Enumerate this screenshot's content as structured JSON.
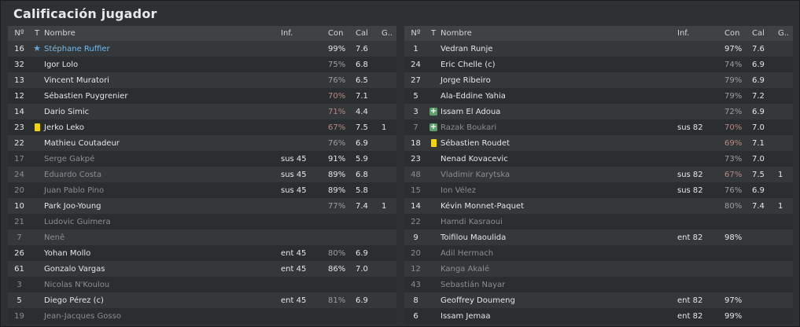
{
  "title": "Calificación jugador",
  "headers": {
    "num": "Nº",
    "t": "T",
    "name": "Nombre",
    "inf": "Inf.",
    "con": "Con",
    "cal": "Cal",
    "g": "G.."
  },
  "icons": {
    "star": "star-icon",
    "yellow_card": "yellow-card-icon",
    "injury_plus": "injury-icon"
  },
  "colors": {
    "yellow_card": "#f1d21a",
    "star": "#6aa6d8",
    "injury": "#5fa06a"
  },
  "left": [
    {
      "num": "16",
      "icon": "star",
      "name": "Stéphane Ruffier",
      "style": "blue",
      "inf": "",
      "con": "99%",
      "con_style": "",
      "cal": "7.6",
      "g": ""
    },
    {
      "num": "32",
      "icon": "",
      "name": "Igor Lolo",
      "style": "",
      "inf": "",
      "con": "75%",
      "con_style": "mid",
      "cal": "6.8",
      "g": ""
    },
    {
      "num": "13",
      "icon": "",
      "name": "Vincent Muratori",
      "style": "",
      "inf": "",
      "con": "76%",
      "con_style": "mid",
      "cal": "6.5",
      "g": ""
    },
    {
      "num": "12",
      "icon": "",
      "name": "Sébastien Puygrenier",
      "style": "",
      "inf": "",
      "con": "70%",
      "con_style": "warn",
      "cal": "7.1",
      "g": ""
    },
    {
      "num": "14",
      "icon": "",
      "name": "Dario Simic",
      "style": "",
      "inf": "",
      "con": "71%",
      "con_style": "warn",
      "cal": "4.4",
      "g": ""
    },
    {
      "num": "23",
      "icon": "yellow_card",
      "name": "Jerko Leko",
      "style": "",
      "inf": "",
      "con": "67%",
      "con_style": "warn",
      "cal": "7.5",
      "g": "1"
    },
    {
      "num": "22",
      "icon": "",
      "name": "Mathieu Coutadeur",
      "style": "",
      "inf": "",
      "con": "76%",
      "con_style": "mid",
      "cal": "6.9",
      "g": ""
    },
    {
      "num": "17",
      "icon": "",
      "name": "Serge Gakpé",
      "style": "dim",
      "inf": "sus 45",
      "con": "91%",
      "con_style": "",
      "cal": "5.9",
      "g": ""
    },
    {
      "num": "24",
      "icon": "",
      "name": "Eduardo Costa",
      "style": "dim",
      "inf": "sus 45",
      "con": "89%",
      "con_style": "",
      "cal": "6.8",
      "g": ""
    },
    {
      "num": "20",
      "icon": "",
      "name": "Juan Pablo Pino",
      "style": "dim",
      "inf": "sus 45",
      "con": "89%",
      "con_style": "",
      "cal": "5.8",
      "g": ""
    },
    {
      "num": "10",
      "icon": "",
      "name": "Park Joo-Young",
      "style": "",
      "inf": "",
      "con": "77%",
      "con_style": "mid",
      "cal": "7.4",
      "g": "1"
    },
    {
      "num": "21",
      "icon": "",
      "name": "Ludovic Guimera",
      "style": "dim",
      "inf": "",
      "con": "",
      "con_style": "",
      "cal": "",
      "g": ""
    },
    {
      "num": "7",
      "icon": "",
      "name": "Nenê",
      "style": "dim",
      "inf": "",
      "con": "",
      "con_style": "",
      "cal": "",
      "g": ""
    },
    {
      "num": "26",
      "icon": "",
      "name": "Yohan Mollo",
      "style": "",
      "inf": "ent 45",
      "con": "80%",
      "con_style": "mid",
      "cal": "6.9",
      "g": ""
    },
    {
      "num": "61",
      "icon": "",
      "name": "Gonzalo Vargas",
      "style": "",
      "inf": "ent 45",
      "con": "86%",
      "con_style": "",
      "cal": "7.0",
      "g": ""
    },
    {
      "num": "3",
      "icon": "",
      "name": "Nicolas N'Koulou",
      "style": "dim",
      "inf": "",
      "con": "",
      "con_style": "",
      "cal": "",
      "g": ""
    },
    {
      "num": "5",
      "icon": "",
      "name": "Diego Pérez (c)",
      "style": "",
      "inf": "ent 45",
      "con": "81%",
      "con_style": "mid",
      "cal": "6.9",
      "g": ""
    },
    {
      "num": "19",
      "icon": "",
      "name": "Jean-Jacques Gosso",
      "style": "dim",
      "inf": "",
      "con": "",
      "con_style": "",
      "cal": "",
      "g": ""
    }
  ],
  "right": [
    {
      "num": "1",
      "icon": "",
      "name": "Vedran Runje",
      "style": "",
      "inf": "",
      "con": "97%",
      "con_style": "",
      "cal": "7.6",
      "g": ""
    },
    {
      "num": "24",
      "icon": "",
      "name": "Eric Chelle (c)",
      "style": "",
      "inf": "",
      "con": "74%",
      "con_style": "mid",
      "cal": "6.9",
      "g": ""
    },
    {
      "num": "27",
      "icon": "",
      "name": "Jorge Ribeiro",
      "style": "",
      "inf": "",
      "con": "79%",
      "con_style": "mid",
      "cal": "6.9",
      "g": ""
    },
    {
      "num": "5",
      "icon": "",
      "name": "Ala-Eddine Yahia",
      "style": "",
      "inf": "",
      "con": "79%",
      "con_style": "mid",
      "cal": "7.2",
      "g": ""
    },
    {
      "num": "3",
      "icon": "injury_plus",
      "name": "Issam El Adoua",
      "style": "",
      "inf": "",
      "con": "72%",
      "con_style": "mid",
      "cal": "6.9",
      "g": ""
    },
    {
      "num": "7",
      "icon": "injury_plus",
      "name": "Razak Boukari",
      "style": "dim",
      "inf": "sus 82",
      "con": "70%",
      "con_style": "warn",
      "cal": "7.0",
      "g": ""
    },
    {
      "num": "18",
      "icon": "yellow_card",
      "name": "Sébastien Roudet",
      "style": "",
      "inf": "",
      "con": "69%",
      "con_style": "warn",
      "cal": "7.1",
      "g": ""
    },
    {
      "num": "23",
      "icon": "",
      "name": "Nenad Kovacevic",
      "style": "",
      "inf": "",
      "con": "73%",
      "con_style": "mid",
      "cal": "7.0",
      "g": ""
    },
    {
      "num": "48",
      "icon": "",
      "name": "Vladimir Karytska",
      "style": "dim",
      "inf": "sus 82",
      "con": "67%",
      "con_style": "warn",
      "cal": "7.5",
      "g": "1"
    },
    {
      "num": "15",
      "icon": "",
      "name": "Ion Vélez",
      "style": "dim",
      "inf": "sus 82",
      "con": "76%",
      "con_style": "mid",
      "cal": "6.9",
      "g": ""
    },
    {
      "num": "14",
      "icon": "",
      "name": "Kévin Monnet-Paquet",
      "style": "",
      "inf": "",
      "con": "80%",
      "con_style": "mid",
      "cal": "7.4",
      "g": "1"
    },
    {
      "num": "22",
      "icon": "",
      "name": "Hamdi Kasraoui",
      "style": "dim",
      "inf": "",
      "con": "",
      "con_style": "",
      "cal": "",
      "g": ""
    },
    {
      "num": "9",
      "icon": "",
      "name": "Toifilou Maoulida",
      "style": "",
      "inf": "ent 82",
      "con": "98%",
      "con_style": "",
      "cal": "",
      "g": ""
    },
    {
      "num": "20",
      "icon": "",
      "name": "Adil Hermach",
      "style": "dim",
      "inf": "",
      "con": "",
      "con_style": "",
      "cal": "",
      "g": ""
    },
    {
      "num": "12",
      "icon": "",
      "name": "Kanga Akalé",
      "style": "dim",
      "inf": "",
      "con": "",
      "con_style": "",
      "cal": "",
      "g": ""
    },
    {
      "num": "43",
      "icon": "",
      "name": "Sebastián Nayar",
      "style": "dim",
      "inf": "",
      "con": "",
      "con_style": "",
      "cal": "",
      "g": ""
    },
    {
      "num": "8",
      "icon": "",
      "name": "Geoffrey Doumeng",
      "style": "",
      "inf": "ent 82",
      "con": "97%",
      "con_style": "",
      "cal": "",
      "g": ""
    },
    {
      "num": "6",
      "icon": "",
      "name": "Issam Jemaa",
      "style": "",
      "inf": "ent 82",
      "con": "99%",
      "con_style": "",
      "cal": "",
      "g": ""
    }
  ]
}
